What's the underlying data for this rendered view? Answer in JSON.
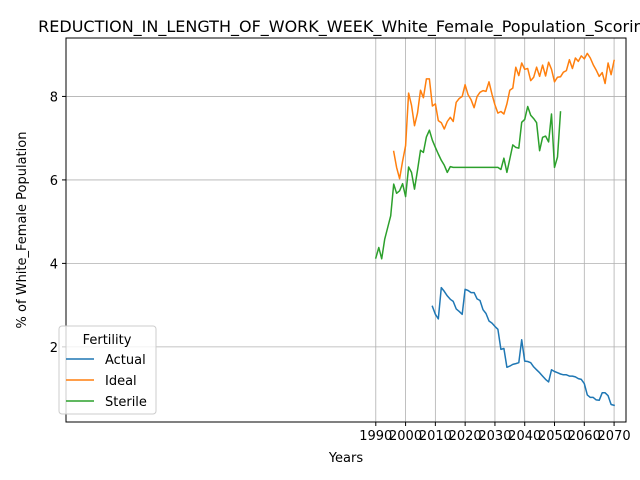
{
  "chart_data": {
    "type": "line",
    "title": "REDUCTION_IN_LENGTH_OF_WORK_WEEK_White_Female_Population_Scoring",
    "xlabel": "Years",
    "ylabel": "% of White_Female Population",
    "xlim": [
      1886,
      2074
    ],
    "ylim": [
      0.2,
      9.4
    ],
    "xticks": [
      1990,
      2000,
      2010,
      2020,
      2030,
      2040,
      2050,
      2060,
      2070
    ],
    "xtick_labels": [
      "1990",
      "2000",
      "2010",
      "2020",
      "2030",
      "2040",
      "2050",
      "2060",
      "2070"
    ],
    "yticks": [
      2,
      4,
      6,
      8
    ],
    "ytick_labels": [
      "2",
      "4",
      "6",
      "8"
    ],
    "grid": true,
    "legend": {
      "title": "Fertility",
      "position": "lower-left"
    },
    "series": [
      {
        "name": "Actual",
        "color": "#1f77b4",
        "x": [
          2009,
          2010,
          2011,
          2012,
          2013,
          2014,
          2015,
          2016,
          2017,
          2018,
          2019,
          2020,
          2021,
          2022,
          2023,
          2024,
          2025,
          2026,
          2027,
          2028,
          2029,
          2030,
          2031,
          2032,
          2033,
          2034,
          2035,
          2036,
          2037,
          2038,
          2039,
          2040,
          2041,
          2042,
          2043,
          2044,
          2045,
          2046,
          2047,
          2048,
          2049,
          2050,
          2051,
          2052,
          2053,
          2054,
          2055,
          2056,
          2057,
          2058,
          2059,
          2060,
          2061,
          2062,
          2063,
          2064,
          2065,
          2066,
          2067,
          2068,
          2069,
          2070
        ],
        "y": [
          2.97,
          2.78,
          2.67,
          3.42,
          3.33,
          3.22,
          3.14,
          3.09,
          2.91,
          2.85,
          2.78,
          3.38,
          3.35,
          3.3,
          3.3,
          3.15,
          3.11,
          2.89,
          2.8,
          2.62,
          2.57,
          2.49,
          2.42,
          1.94,
          1.96,
          1.51,
          1.54,
          1.58,
          1.6,
          1.62,
          2.17,
          1.66,
          1.65,
          1.62,
          1.52,
          1.45,
          1.38,
          1.3,
          1.22,
          1.16,
          1.45,
          1.41,
          1.38,
          1.35,
          1.33,
          1.33,
          1.3,
          1.3,
          1.28,
          1.24,
          1.22,
          1.12,
          0.85,
          0.79,
          0.79,
          0.73,
          0.72,
          0.9,
          0.9,
          0.83,
          0.62,
          0.6
        ]
      },
      {
        "name": "Ideal",
        "color": "#ff7f0e",
        "x": [
          1996,
          1997,
          1998,
          1999,
          2000,
          2001,
          2002,
          2003,
          2004,
          2005,
          2006,
          2007,
          2008,
          2009,
          2010,
          2011,
          2012,
          2013,
          2014,
          2015,
          2016,
          2017,
          2018,
          2019,
          2020,
          2021,
          2022,
          2023,
          2024,
          2025,
          2026,
          2027,
          2028,
          2029,
          2030,
          2031,
          2032,
          2033,
          2034,
          2035,
          2036,
          2037,
          2038,
          2039,
          2040,
          2041,
          2042,
          2043,
          2044,
          2045,
          2046,
          2047,
          2048,
          2049,
          2050,
          2051,
          2052,
          2053,
          2054,
          2055,
          2056,
          2057,
          2058,
          2059,
          2060,
          2061,
          2062,
          2063,
          2064,
          2065,
          2066,
          2067,
          2068,
          2069,
          2070
        ],
        "y": [
          6.68,
          6.3,
          6.03,
          6.45,
          6.82,
          8.08,
          7.79,
          7.3,
          7.6,
          8.15,
          7.97,
          8.42,
          8.42,
          7.77,
          7.82,
          7.42,
          7.37,
          7.22,
          7.4,
          7.5,
          7.4,
          7.86,
          7.95,
          8.0,
          8.28,
          8.04,
          7.92,
          7.73,
          8.0,
          8.1,
          8.14,
          8.12,
          8.35,
          8.05,
          7.8,
          7.6,
          7.64,
          7.58,
          7.82,
          8.15,
          8.2,
          8.7,
          8.5,
          8.8,
          8.65,
          8.67,
          8.38,
          8.46,
          8.7,
          8.48,
          8.75,
          8.49,
          8.82,
          8.65,
          8.35,
          8.46,
          8.47,
          8.58,
          8.62,
          8.88,
          8.67,
          8.92,
          8.84,
          8.97,
          8.9,
          9.03,
          8.92,
          8.76,
          8.63,
          8.48,
          8.57,
          8.31,
          8.8,
          8.52,
          8.86
        ]
      },
      {
        "name": "Sterile",
        "color": "#2ca02c",
        "x": [
          1990,
          1991,
          1992,
          1993,
          1994,
          1995,
          1996,
          1997,
          1998,
          1999,
          2000,
          2001,
          2002,
          2003,
          2004,
          2005,
          2006,
          2007,
          2008,
          2009,
          2010,
          2011,
          2012,
          2013,
          2014,
          2015,
          2016,
          2017,
          2018,
          2019,
          2020,
          2021,
          2022,
          2023,
          2024,
          2025,
          2026,
          2027,
          2028,
          2029,
          2030,
          2031,
          2032,
          2033,
          2034,
          2035,
          2036,
          2037,
          2038,
          2039,
          2040,
          2041,
          2042,
          2043,
          2044,
          2045,
          2046,
          2047,
          2048,
          2049,
          2050,
          2051,
          2052
        ],
        "y": [
          4.13,
          4.38,
          4.11,
          4.58,
          4.86,
          5.14,
          5.9,
          5.68,
          5.74,
          5.91,
          5.6,
          6.31,
          6.18,
          5.78,
          6.23,
          6.71,
          6.66,
          7.03,
          7.19,
          6.95,
          6.78,
          6.62,
          6.47,
          6.35,
          6.18,
          6.32,
          6.3,
          6.3,
          6.3,
          6.3,
          6.3,
          6.3,
          6.3,
          6.3,
          6.3,
          6.3,
          6.3,
          6.3,
          6.3,
          6.3,
          6.3,
          6.3,
          6.25,
          6.52,
          6.18,
          6.5,
          6.84,
          6.78,
          6.76,
          7.38,
          7.45,
          7.76,
          7.55,
          7.47,
          7.37,
          6.7,
          7.02,
          7.05,
          6.91,
          7.58,
          6.3,
          6.55,
          7.63
        ]
      }
    ]
  }
}
